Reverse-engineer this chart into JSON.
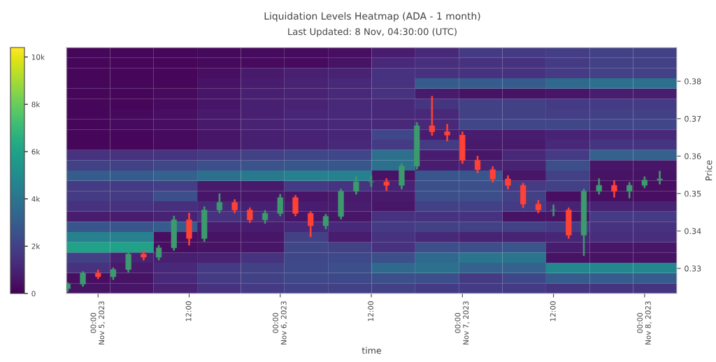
{
  "chart_data": {
    "type": "heatmap",
    "title": "Liquidation Levels Heatmap (ADA - 1 month)",
    "subtitle": "Last Updated: 8 Nov, 04:30:00 (UTC)",
    "xlabel": "time",
    "ylabel": "Price",
    "cells": [
      [
        200,
        200,
        200,
        250,
        300,
        300,
        400,
        800,
        1200,
        1800,
        1800,
        1900,
        2000,
        2000
      ],
      [
        200,
        200,
        200,
        250,
        300,
        300,
        500,
        1200,
        1400,
        1500,
        1500,
        1800,
        2000,
        2000
      ],
      [
        200,
        200,
        200,
        400,
        700,
        900,
        1000,
        1500,
        1500,
        1500,
        1500,
        1800,
        2000,
        2000
      ],
      [
        200,
        200,
        200,
        500,
        800,
        1000,
        1200,
        1500,
        3000,
        3000,
        3000,
        3500,
        3800,
        3800
      ],
      [
        200,
        200,
        300,
        600,
        900,
        1000,
        1200,
        1500,
        700,
        500,
        500,
        600,
        800,
        800
      ],
      [
        200,
        200,
        300,
        600,
        900,
        1000,
        1200,
        1200,
        1600,
        2000,
        2000,
        1800,
        1800,
        1800
      ],
      [
        200,
        250,
        400,
        700,
        900,
        1100,
        1200,
        1200,
        1200,
        2000,
        2000,
        1900,
        2000,
        2000
      ],
      [
        200,
        300,
        400,
        700,
        1000,
        1100,
        1200,
        1200,
        1200,
        2200,
        2200,
        2200,
        2200,
        2200
      ],
      [
        200,
        200,
        300,
        600,
        900,
        1000,
        1100,
        2200,
        800,
        800,
        800,
        1000,
        1200,
        1200
      ],
      [
        200,
        200,
        300,
        600,
        900,
        1000,
        1200,
        1800,
        1800,
        700,
        700,
        1200,
        1600,
        1600
      ],
      [
        1500,
        1500,
        1600,
        1800,
        2000,
        2200,
        2200,
        3800,
        800,
        600,
        1200,
        1800,
        3200,
        3200
      ],
      [
        2000,
        2000,
        2200,
        2500,
        2600,
        2800,
        2800,
        3800,
        800,
        1000,
        1000,
        2500,
        600,
        600
      ],
      [
        3000,
        3000,
        3200,
        3800,
        4200,
        4500,
        4500,
        500,
        2800,
        2800,
        600,
        2000,
        500,
        500
      ],
      [
        1800,
        1800,
        1900,
        700,
        700,
        1800,
        1600,
        1000,
        2500,
        2500,
        1800,
        2000,
        400,
        400
      ],
      [
        1800,
        1800,
        2500,
        600,
        600,
        600,
        700,
        700,
        2500,
        2500,
        2000,
        400,
        400,
        400
      ],
      [
        1500,
        1500,
        1400,
        1200,
        900,
        800,
        800,
        600,
        2000,
        2000,
        1800,
        1000,
        1000,
        1000
      ],
      [
        800,
        800,
        1000,
        1500,
        1200,
        600,
        600,
        1500,
        1500,
        1500,
        500,
        500,
        1800,
        1800
      ],
      [
        2800,
        2800,
        3000,
        800,
        800,
        1200,
        1200,
        1800,
        2000,
        2000,
        2000,
        1800,
        1500,
        1500
      ],
      [
        4500,
        4500,
        400,
        500,
        600,
        2000,
        800,
        1500,
        1200,
        1000,
        1000,
        1100,
        1300,
        1300
      ],
      [
        6000,
        6000,
        400,
        500,
        600,
        2200,
        2000,
        1500,
        2500,
        2500,
        2800,
        800,
        600,
        600
      ],
      [
        2000,
        1000,
        900,
        1000,
        1500,
        2200,
        2300,
        2500,
        3500,
        4000,
        4000,
        500,
        500,
        500
      ],
      [
        1500,
        700,
        1200,
        1800,
        2000,
        2300,
        2500,
        3500,
        3800,
        3200,
        3200,
        4800,
        4800,
        4800
      ],
      [
        400,
        500,
        1200,
        1800,
        2000,
        2300,
        2300,
        2500,
        2500,
        1800,
        2200,
        3000,
        3000,
        3000
      ],
      [
        500,
        600,
        1000,
        1500,
        1800,
        2000,
        2000,
        2000,
        1800,
        1800,
        1800,
        1600,
        1600,
        1600
      ]
    ],
    "xlim": [
      "2023-11-04T19:50",
      "2023-11-08T04:15"
    ],
    "xticks": [
      {
        "value": "2023-11-05T00:00",
        "label": "00:00\nNov 5, 2023"
      },
      {
        "value": "2023-11-05T12:00",
        "label": "12:00"
      },
      {
        "value": "2023-11-06T00:00",
        "label": "00:00\nNov 6, 2023"
      },
      {
        "value": "2023-11-06T12:00",
        "label": "12:00"
      },
      {
        "value": "2023-11-07T00:00",
        "label": "00:00\nNov 7, 2023"
      },
      {
        "value": "2023-11-07T12:00",
        "label": "12:00"
      },
      {
        "value": "2023-11-08T00:00",
        "label": "00:00\nNov 8, 2023"
      }
    ],
    "ylim": [
      0.3233,
      0.389
    ],
    "yticks": [
      0.33,
      0.34,
      0.35,
      0.36,
      0.37,
      0.38
    ],
    "clim": [
      0,
      10400
    ],
    "cticks": [
      0,
      {
        "value": 2000,
        "label": "2k"
      },
      {
        "value": 4000,
        "label": "4k"
      },
      {
        "value": 6000,
        "label": "6k"
      },
      {
        "value": 8000,
        "label": "8k"
      },
      {
        "value": 10000,
        "label": "10k"
      }
    ],
    "series": [
      {
        "type": "candlestick",
        "x": [
          "2023-11-04T20:00",
          "2023-11-04T22:00",
          "2023-11-05T00:00",
          "2023-11-05T02:00",
          "2023-11-05T04:00",
          "2023-11-05T06:00",
          "2023-11-05T08:00",
          "2023-11-05T10:00",
          "2023-11-05T12:00",
          "2023-11-05T14:00",
          "2023-11-05T16:00",
          "2023-11-05T18:00",
          "2023-11-05T20:00",
          "2023-11-05T22:00",
          "2023-11-06T00:00",
          "2023-11-06T02:00",
          "2023-11-06T04:00",
          "2023-11-06T06:00",
          "2023-11-06T08:00",
          "2023-11-06T10:00",
          "2023-11-06T12:00",
          "2023-11-06T14:00",
          "2023-11-06T16:00",
          "2023-11-06T18:00",
          "2023-11-06T20:00",
          "2023-11-06T22:00",
          "2023-11-07T00:00",
          "2023-11-07T02:00",
          "2023-11-07T04:00",
          "2023-11-07T06:00",
          "2023-11-07T08:00",
          "2023-11-07T10:00",
          "2023-11-07T12:00",
          "2023-11-07T14:00",
          "2023-11-07T16:00",
          "2023-11-07T18:00",
          "2023-11-07T20:00",
          "2023-11-07T22:00",
          "2023-11-08T00:00",
          "2023-11-08T02:00"
        ],
        "ohlc": [
          [
            0.3246,
            0.3262,
            0.3238,
            0.3258
          ],
          [
            0.3258,
            0.3292,
            0.3252,
            0.3288
          ],
          [
            0.3288,
            0.3296,
            0.3272,
            0.3278
          ],
          [
            0.3278,
            0.3302,
            0.327,
            0.3297
          ],
          [
            0.3297,
            0.3345,
            0.329,
            0.3338
          ],
          [
            0.3338,
            0.3348,
            0.3322,
            0.333
          ],
          [
            0.333,
            0.3362,
            0.3322,
            0.3355
          ],
          [
            0.3355,
            0.344,
            0.3348,
            0.343
          ],
          [
            0.343,
            0.3448,
            0.3362,
            0.338
          ],
          [
            0.338,
            0.3465,
            0.3372,
            0.3456
          ],
          [
            0.3456,
            0.35,
            0.3448,
            0.3476
          ],
          [
            0.3476,
            0.3484,
            0.3448,
            0.3456
          ],
          [
            0.3456,
            0.3462,
            0.3422,
            0.343
          ],
          [
            0.343,
            0.3455,
            0.342,
            0.3447
          ],
          [
            0.3447,
            0.3498,
            0.344,
            0.3489
          ],
          [
            0.3489,
            0.3495,
            0.344,
            0.3447
          ],
          [
            0.3447,
            0.3452,
            0.3384,
            0.3414
          ],
          [
            0.3414,
            0.3445,
            0.3405,
            0.3439
          ],
          [
            0.3439,
            0.3512,
            0.3432,
            0.3506
          ],
          [
            0.3506,
            0.3545,
            0.3498,
            0.3531
          ],
          [
            0.3531,
            0.3548,
            0.3518,
            0.3531
          ],
          [
            0.3531,
            0.354,
            0.3508,
            0.3522
          ],
          [
            0.3522,
            0.358,
            0.3512,
            0.3573
          ],
          [
            0.3573,
            0.369,
            0.3565,
            0.3681
          ],
          [
            0.3681,
            0.376,
            0.3655,
            0.3665
          ],
          [
            0.3665,
            0.3685,
            0.364,
            0.3656
          ],
          [
            0.3656,
            0.3665,
            0.358,
            0.3589
          ],
          [
            0.3589,
            0.36,
            0.3555,
            0.3564
          ],
          [
            0.3564,
            0.3572,
            0.353,
            0.3539
          ],
          [
            0.3539,
            0.3548,
            0.3512,
            0.3522
          ],
          [
            0.3522,
            0.3528,
            0.3462,
            0.3472
          ],
          [
            0.3472,
            0.3482,
            0.3448,
            0.3456
          ],
          [
            0.3456,
            0.347,
            0.344,
            0.3456
          ],
          [
            0.3456,
            0.3462,
            0.338,
            0.3389
          ],
          [
            0.3389,
            0.3512,
            0.3334,
            0.3506
          ],
          [
            0.3506,
            0.354,
            0.3498,
            0.3522
          ],
          [
            0.3522,
            0.3535,
            0.349,
            0.3506
          ],
          [
            0.3506,
            0.353,
            0.3488,
            0.3522
          ],
          [
            0.3522,
            0.3545,
            0.3515,
            0.3536
          ],
          [
            0.3536,
            0.356,
            0.3525,
            0.3539
          ]
        ],
        "colors": [
          "#3d9a6e",
          "#3d9a6e",
          "#ff4136",
          "#3d9a6e",
          "#3d9a6e",
          "#ff4136",
          "#3d9a6e",
          "#3d9a6e",
          "#ff4136",
          "#3d9a6e",
          "#3d9a6e",
          "#ff4136",
          "#ff4136",
          "#3d9a6e",
          "#3d9a6e",
          "#ff4136",
          "#ff4136",
          "#3d9a6e",
          "#3d9a6e",
          "#3d9a6e",
          "#3d9a6e",
          "#ff4136",
          "#3d9a6e",
          "#3d9a6e",
          "#ff4136",
          "#ff4136",
          "#ff4136",
          "#ff4136",
          "#ff4136",
          "#ff4136",
          "#ff4136",
          "#ff4136",
          "#3d9a6e",
          "#ff4136",
          "#3d9a6e",
          "#3d9a6e",
          "#ff4136",
          "#3d9a6e",
          "#3d9a6e",
          "#3d9a6e"
        ]
      }
    ]
  }
}
